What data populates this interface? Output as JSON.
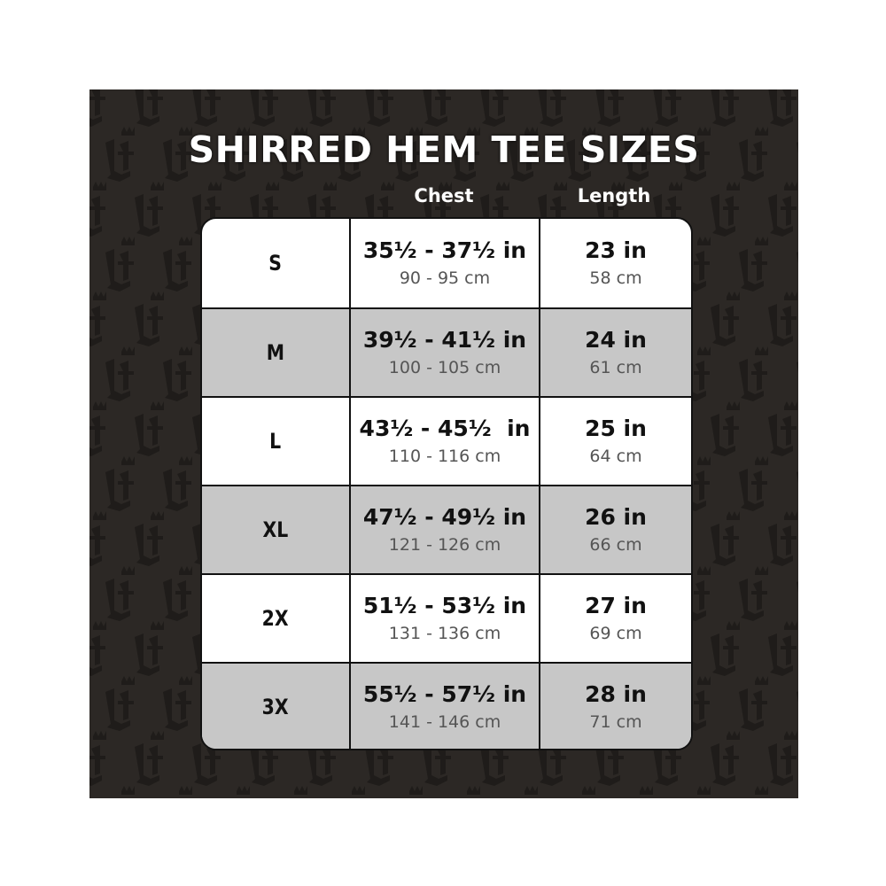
{
  "title": "SHIRRED HEM TEE SIZES",
  "columns": {
    "chest": "Chest",
    "length": "Length"
  },
  "colors": {
    "background": "#2c2825",
    "pattern": "#1f1c1a",
    "row_alt": "#c7c7c7",
    "row": "#ffffff"
  },
  "pattern_icon": "lf-crown-monogram",
  "rows": [
    {
      "size": "S",
      "chest_in": "35½ - 37½ in",
      "chest_cm": "90 - 95 cm",
      "length_in": "23 in",
      "length_cm": "58 cm"
    },
    {
      "size": "M",
      "chest_in": "39½ - 41½ in",
      "chest_cm": "100 - 105 cm",
      "length_in": "24 in",
      "length_cm": "61 cm"
    },
    {
      "size": "L",
      "chest_in": "43½ - 45½  in",
      "chest_cm": "110 - 116 cm",
      "length_in": "25 in",
      "length_cm": "64 cm"
    },
    {
      "size": "XL",
      "chest_in": "47½ - 49½ in",
      "chest_cm": "121 - 126 cm",
      "length_in": "26 in",
      "length_cm": "66 cm"
    },
    {
      "size": "2X",
      "chest_in": "51½ - 53½ in",
      "chest_cm": "131 - 136 cm",
      "length_in": "27 in",
      "length_cm": "69 cm"
    },
    {
      "size": "3X",
      "chest_in": "55½ - 57½ in",
      "chest_cm": "141 - 146 cm",
      "length_in": "28 in",
      "length_cm": "71 cm"
    }
  ]
}
